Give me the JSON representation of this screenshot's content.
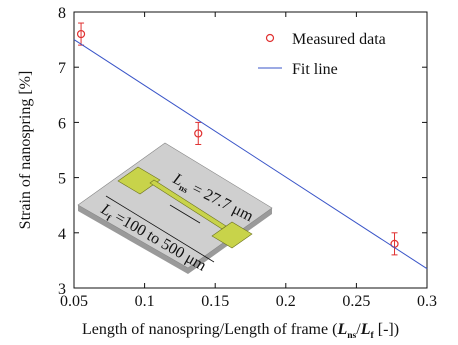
{
  "chart_data": {
    "type": "scatter",
    "y_label": "Strain of nanospring [%]",
    "x_label": [
      {
        "text": "Length of nanospring/Length of frame (",
        "style": "normal"
      },
      {
        "text": "L",
        "style": "bold-italic"
      },
      {
        "text": "ns",
        "style": "subscript"
      },
      {
        "text": "/",
        "style": "normal"
      },
      {
        "text": "L",
        "style": "bold-italic"
      },
      {
        "text": "f",
        "style": "subscript"
      },
      {
        "text": " [-])",
        "style": "normal"
      }
    ],
    "xlim": [
      0.05,
      0.3
    ],
    "xticks": [
      0.05,
      0.1,
      0.15,
      0.2,
      0.25,
      0.3
    ],
    "ylim": [
      3,
      8
    ],
    "yticks": [
      3,
      4,
      5,
      6,
      7,
      8
    ],
    "legend": "upper right",
    "series": [
      {
        "name": "Measured data",
        "kind": "points",
        "color": "#e03030",
        "x": [
          0.055,
          0.138,
          0.277
        ],
        "values": [
          7.6,
          5.8,
          3.8
        ],
        "errors": [
          0.2,
          0.2,
          0.2
        ]
      },
      {
        "name": "Fit line",
        "kind": "line",
        "color": "#3a55c8",
        "x": [
          0.05,
          0.3
        ],
        "values": [
          7.5,
          3.35
        ]
      }
    ],
    "annotations": [
      [
        {
          "text": "L",
          "style": "italic"
        },
        {
          "text": "ns",
          "style": "subscript"
        },
        {
          "text": " = 27.7 μm",
          "style": "normal"
        }
      ],
      [
        {
          "text": "L",
          "style": "italic"
        },
        {
          "text": "f",
          "style": "subscript"
        },
        {
          "text": " =100 to 500 μm",
          "style": "normal"
        }
      ]
    ]
  }
}
